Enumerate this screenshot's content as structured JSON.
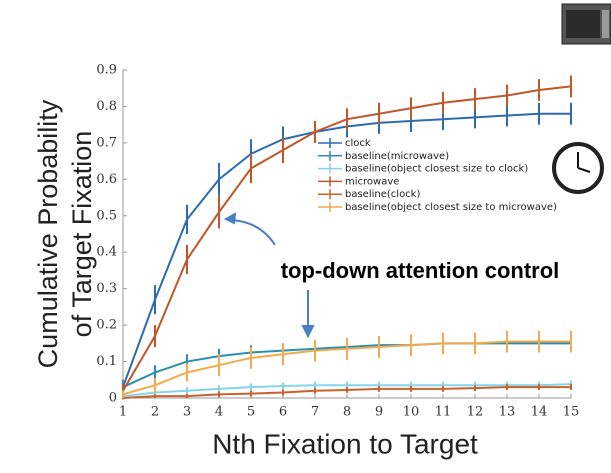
{
  "chart_data": {
    "type": "line",
    "ylabel": [
      "Cumulative Probability",
      "of Target Fixation"
    ],
    "xlabel": "Nth Fixation to Target",
    "annotation": "top-down attention control",
    "x": [
      1,
      2,
      3,
      4,
      5,
      6,
      7,
      8,
      9,
      10,
      11,
      12,
      13,
      14,
      15
    ],
    "xlim": [
      1,
      15
    ],
    "xticks": [
      1,
      2,
      3,
      4,
      5,
      6,
      7,
      8,
      9,
      10,
      11,
      12,
      13,
      14,
      15
    ],
    "ylim": [
      0,
      0.9
    ],
    "yticks": [
      0,
      0.1,
      0.2,
      0.3,
      0.4,
      0.5,
      0.6,
      0.7,
      0.8,
      0.9
    ],
    "series": [
      {
        "name": "clock",
        "color": "#2b6cb0",
        "values": [
          0.03,
          0.27,
          0.49,
          0.6,
          0.67,
          0.71,
          0.73,
          0.745,
          0.755,
          0.76,
          0.765,
          0.77,
          0.775,
          0.78,
          0.78
        ],
        "errors": [
          0.02,
          0.04,
          0.04,
          0.045,
          0.04,
          0.035,
          0.03,
          0.03,
          0.03,
          0.03,
          0.03,
          0.03,
          0.03,
          0.03,
          0.03
        ]
      },
      {
        "name": "baseline(microwave)",
        "color": "#2a8fb0",
        "values": [
          0.03,
          0.07,
          0.1,
          0.115,
          0.125,
          0.13,
          0.135,
          0.14,
          0.145,
          0.145,
          0.15,
          0.15,
          0.15,
          0.15,
          0.15
        ],
        "errors": [
          0.02,
          0.02,
          0.02,
          0.02,
          0.02,
          0.02,
          0.02,
          0.02,
          0.02,
          0.02,
          0.02,
          0.02,
          0.02,
          0.02,
          0.02
        ]
      },
      {
        "name": "baseline(object closest size to clock)",
        "color": "#86d4ea",
        "values": [
          0.005,
          0.015,
          0.02,
          0.025,
          0.03,
          0.033,
          0.035,
          0.035,
          0.035,
          0.035,
          0.035,
          0.035,
          0.035,
          0.035,
          0.038
        ],
        "errors": [
          0.005,
          0.008,
          0.01,
          0.01,
          0.01,
          0.01,
          0.01,
          0.01,
          0.01,
          0.01,
          0.01,
          0.01,
          0.01,
          0.01,
          0.01
        ]
      },
      {
        "name": "microwave",
        "color": "#c0562a",
        "values": [
          0.02,
          0.17,
          0.38,
          0.51,
          0.63,
          0.68,
          0.73,
          0.765,
          0.78,
          0.795,
          0.81,
          0.82,
          0.83,
          0.845,
          0.855
        ],
        "errors": [
          0.02,
          0.03,
          0.04,
          0.045,
          0.04,
          0.035,
          0.03,
          0.03,
          0.03,
          0.03,
          0.03,
          0.03,
          0.03,
          0.03,
          0.03
        ]
      },
      {
        "name": "baseline(clock)",
        "color": "#c9622e",
        "values": [
          0.0,
          0.005,
          0.005,
          0.01,
          0.012,
          0.015,
          0.02,
          0.022,
          0.025,
          0.025,
          0.025,
          0.027,
          0.03,
          0.03,
          0.03
        ],
        "errors": [
          0.004,
          0.005,
          0.006,
          0.008,
          0.008,
          0.008,
          0.008,
          0.008,
          0.008,
          0.008,
          0.008,
          0.008,
          0.008,
          0.008,
          0.008
        ]
      },
      {
        "name": "baseline(object closest size to microwave)",
        "color": "#f2aa4c",
        "values": [
          0.01,
          0.035,
          0.07,
          0.09,
          0.11,
          0.12,
          0.13,
          0.135,
          0.14,
          0.145,
          0.15,
          0.15,
          0.155,
          0.155,
          0.155
        ],
        "errors": [
          0.01,
          0.02,
          0.025,
          0.03,
          0.03,
          0.03,
          0.03,
          0.03,
          0.03,
          0.03,
          0.03,
          0.03,
          0.03,
          0.03,
          0.03
        ]
      }
    ]
  }
}
